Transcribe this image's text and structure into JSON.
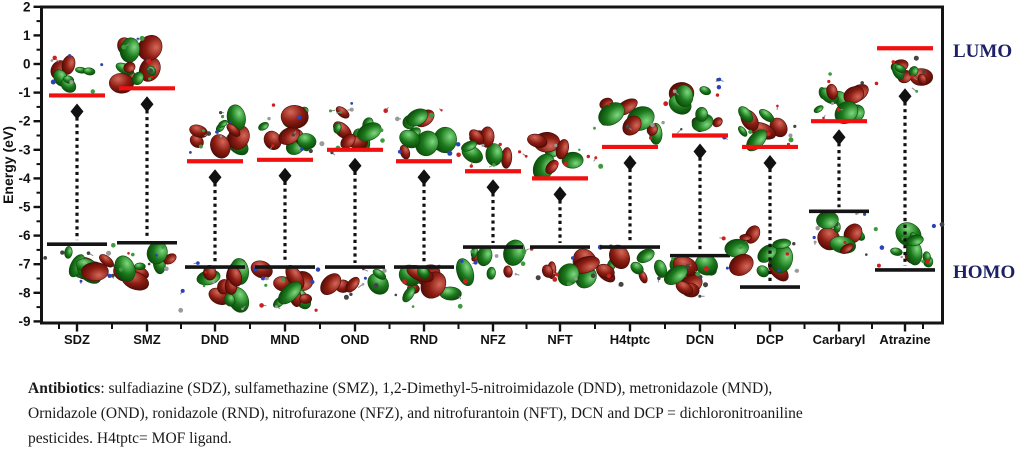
{
  "figure": {
    "ylabel": "Energy (eV)",
    "right_labels": {
      "lumo": "LUMO",
      "homo": "HOMO"
    }
  },
  "chart_data": {
    "type": "energy_level_diagram",
    "title": "",
    "ylabel": "Energy (eV)",
    "unit": "eV",
    "ylim": [
      -9,
      2
    ],
    "y_ticks": [
      2,
      1,
      0,
      -1,
      -2,
      -3,
      -4,
      -5,
      -6,
      -7,
      -8,
      -9
    ],
    "grid": false,
    "categories": [
      "SDZ",
      "SMZ",
      "DND",
      "MND",
      "OND",
      "RND",
      "NFZ",
      "NFT",
      "H4tptc",
      "DCN",
      "DCP",
      "Carbaryl",
      "Atrazine"
    ],
    "series": [
      {
        "name": "LUMO",
        "style": "red_level_line",
        "values": [
          -1.1,
          -0.85,
          -3.4,
          -3.35,
          -3.0,
          -3.4,
          -3.75,
          -4.0,
          -2.9,
          -2.5,
          -2.9,
          -2.0,
          0.55
        ]
      },
      {
        "name": "HOMO",
        "style": "black_level_line",
        "values": [
          -6.3,
          -6.25,
          -7.1,
          -7.1,
          -7.1,
          -7.1,
          -6.4,
          -6.4,
          -6.4,
          -6.7,
          -7.8,
          -5.15,
          -7.2
        ]
      }
    ],
    "gap_arrows": "dashed vertical arrow with diamond head from HOMO up to LUMO for every molecule",
    "orbital_images": "green/dark-red molecular orbital isosurface clusters drawn beside each LUMO and HOMO level",
    "annotations": [
      {
        "text": "LUMO",
        "position": "right margin, at Atrazine LUMO height"
      },
      {
        "text": "HOMO",
        "position": "right margin, at Atrazine HOMO height"
      }
    ]
  },
  "caption": {
    "lead": "Antibiotics",
    "line1_rest": ": sulfadiazine (SDZ), sulfamethazine (SMZ), 1,2-Dimethyl-5-nitroimidazole (DND), metronidazole (MND),",
    "line2": "Ornidazole (OND), ronidazole (RND), nitrofurazone (NFZ), and nitrofurantoin (NFT), DCN and DCP = dichloronitroaniline",
    "line3": "pesticides. H4tptc= MOF ligand."
  },
  "colors": {
    "lumo_line": "#f01010",
    "homo_line": "#141414",
    "frame": "#141414",
    "arrow": "#111111",
    "right_label_text": "#1e2066",
    "orbital_green": "#1d7a1d",
    "orbital_red": "#8d1d12"
  }
}
